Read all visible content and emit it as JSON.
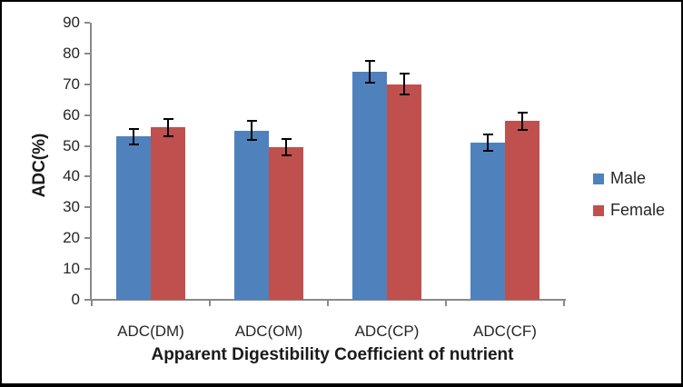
{
  "chart_data": {
    "type": "bar",
    "title": "",
    "xlabel": "Apparent Digestibility Coefficient of nutrient",
    "ylabel": "ADC(%)",
    "categories": [
      "ADC(DM)",
      "ADC(OM)",
      "ADC(CP)",
      "ADC(CF)"
    ],
    "series": [
      {
        "name": "Male",
        "color": "#4F81BD",
        "values": [
          53,
          55,
          74,
          51
        ],
        "errors": [
          2.6,
          3.1,
          3.5,
          2.6
        ]
      },
      {
        "name": "Female",
        "color": "#C0504D",
        "values": [
          56,
          49.5,
          70,
          58
        ],
        "errors": [
          2.8,
          2.7,
          3.4,
          2.9
        ]
      }
    ],
    "error_bars": true,
    "ylim": [
      0,
      90
    ],
    "yticks": [
      0,
      10,
      20,
      30,
      40,
      50,
      60,
      70,
      80,
      90
    ],
    "grid": false,
    "legend_position": "right",
    "axis_color": "#8a8a8a",
    "error_bar_color": "#000000"
  }
}
